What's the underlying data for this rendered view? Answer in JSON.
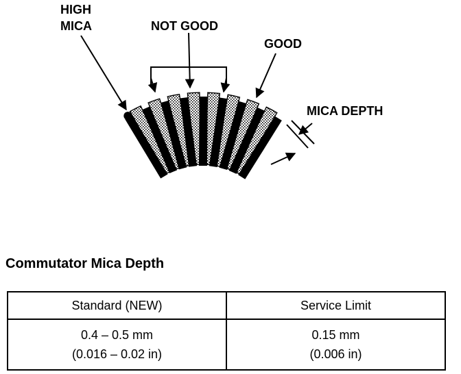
{
  "callouts": {
    "high_mica": [
      "HIGH",
      "MICA"
    ],
    "not_good": "NOT GOOD",
    "good": "GOOD",
    "mica_depth": "MICA DEPTH"
  },
  "section_title": "Commutator Mica Depth",
  "table": {
    "headers": [
      "Standard (NEW)",
      "Service Limit"
    ],
    "rows": [
      {
        "standard": {
          "mm": "0.4 – 0.5 mm",
          "in": "(0.016 – 0.02 in)"
        },
        "limit": {
          "mm": "0.15 mm",
          "in": "(0.006 in)"
        }
      }
    ]
  }
}
